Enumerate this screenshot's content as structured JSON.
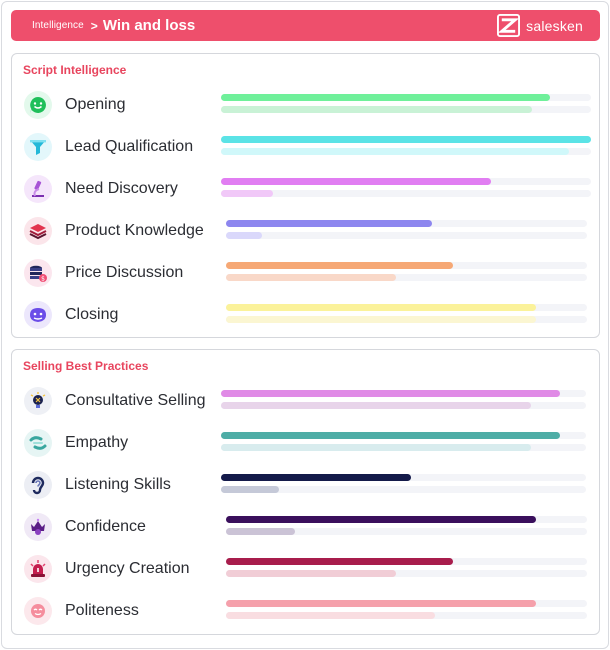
{
  "header": {
    "breadcrumb_parent": "Intelligence",
    "breadcrumb_separator": ">",
    "title": "Win and loss",
    "brand_name": "salesken"
  },
  "sections": [
    {
      "title": "Script Intelligence",
      "items": [
        {
          "label": "Opening",
          "icon": "smile-chat-icon",
          "primary": 0.89,
          "secondary": 0.84,
          "primary_color": "#6ff09a",
          "secondary_color": "#c9f2d6",
          "icon_bg": "#e3f9ec"
        },
        {
          "label": "Lead Qualification",
          "icon": "funnel-icon",
          "primary": 1.0,
          "secondary": 0.94,
          "primary_color": "#5be3e6",
          "secondary_color": "#d0f8fa",
          "icon_bg": "#e3f7fb"
        },
        {
          "label": "Need Discovery",
          "icon": "microscope-icon",
          "primary": 0.73,
          "secondary": 0.14,
          "primary_color": "#e17ef2",
          "secondary_color": "#f1c8f8",
          "icon_bg": "#f5e6fb"
        },
        {
          "label": "Product Knowledge",
          "icon": "layers-icon",
          "primary": 0.57,
          "secondary": 0.1,
          "primary_color": "#8d86ef",
          "secondary_color": "#dad8fb",
          "icon_bg": "#fbe5ea"
        },
        {
          "label": "Price Discussion",
          "icon": "coin-stack-icon",
          "primary": 0.63,
          "secondary": 0.47,
          "primary_color": "#f6a875",
          "secondary_color": "#f9d8c8",
          "icon_bg": "#fbe6ee"
        },
        {
          "label": "Closing",
          "icon": "handshake-icon",
          "primary": 0.86,
          "secondary": 0.86,
          "primary_color": "#fbf29a",
          "secondary_color": "#fbf6d2",
          "icon_bg": "#ece7fc"
        }
      ]
    },
    {
      "title": "Selling Best Practices",
      "items": [
        {
          "label": "Consultative Selling",
          "icon": "lightbulb-person-icon",
          "primary": 0.93,
          "secondary": 0.85,
          "primary_color": "#e08ae6",
          "secondary_color": "#e8d4ea",
          "icon_bg": "#eef0f5"
        },
        {
          "label": "Empathy",
          "icon": "empathy-hands-icon",
          "primary": 0.93,
          "secondary": 0.85,
          "primary_color": "#4eada6",
          "secondary_color": "#d8ecee",
          "icon_bg": "#e6f5f4"
        },
        {
          "label": "Listening Skills",
          "icon": "ear-icon",
          "primary": 0.52,
          "secondary": 0.16,
          "primary_color": "#141a4a",
          "secondary_color": "#c5c9d8",
          "icon_bg": "#eceef4"
        },
        {
          "label": "Confidence",
          "icon": "crown-person-icon",
          "primary": 0.86,
          "secondary": 0.19,
          "primary_color": "#3a0f5c",
          "secondary_color": "#cbc3d6",
          "icon_bg": "#f0e9f6"
        },
        {
          "label": "Urgency Creation",
          "icon": "siren-icon",
          "primary": 0.63,
          "secondary": 0.47,
          "primary_color": "#a81d4c",
          "secondary_color": "#f1cdd6",
          "icon_bg": "#fbe6ec"
        },
        {
          "label": "Politeness",
          "icon": "polite-face-icon",
          "primary": 0.86,
          "secondary": 0.58,
          "primary_color": "#f5a0ab",
          "secondary_color": "#f9dde1",
          "icon_bg": "#fce8ec"
        }
      ]
    }
  ]
}
